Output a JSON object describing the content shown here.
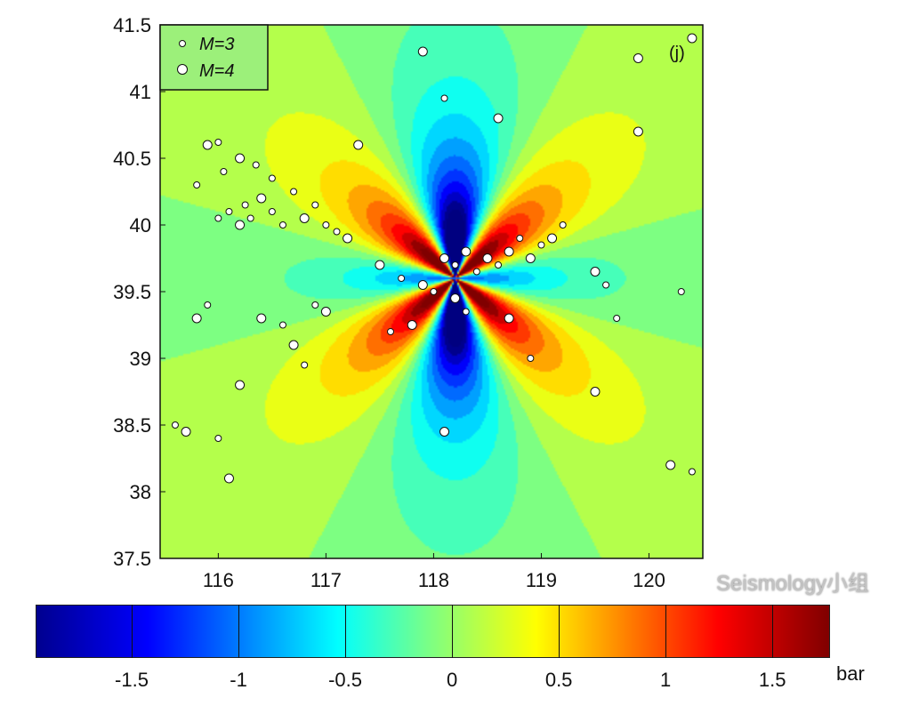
{
  "chart_data": {
    "type": "heatmap",
    "title": "",
    "panel_label": "(j)",
    "xlabel": "",
    "ylabel": "",
    "xlim": [
      115.46,
      120.5
    ],
    "ylim": [
      37.5,
      41.5
    ],
    "xticks": [
      "116",
      "117",
      "118",
      "119",
      "120"
    ],
    "yticks": [
      "41.5",
      "41",
      "40.5",
      "40",
      "39.5",
      "39",
      "38.5",
      "38",
      "37.5"
    ],
    "legend": {
      "placement": "top-left",
      "entries": [
        "M=3",
        "M=4"
      ]
    },
    "colorbar": {
      "range": [
        -1.95,
        1.77
      ],
      "ticks": [
        "-1.5",
        "-1",
        "-0.5",
        "0",
        "0.5",
        "1",
        "1.5"
      ],
      "unit": "bar",
      "colormap": "jet"
    },
    "field_description_values": {
      "source_lon": 118.2,
      "source_lat": 39.6,
      "contour_step": 0.2
    },
    "events": [
      [
        116.0,
        40.05,
        3
      ],
      [
        116.1,
        40.1,
        3
      ],
      [
        116.2,
        40.0,
        4
      ],
      [
        116.25,
        40.15,
        3
      ],
      [
        116.3,
        40.05,
        3
      ],
      [
        116.4,
        40.2,
        4
      ],
      [
        116.5,
        40.1,
        3
      ],
      [
        116.6,
        40.0,
        3
      ],
      [
        116.05,
        40.4,
        3
      ],
      [
        116.2,
        40.5,
        4
      ],
      [
        116.35,
        40.45,
        3
      ],
      [
        116.5,
        40.35,
        3
      ],
      [
        115.9,
        40.6,
        4
      ],
      [
        116.0,
        40.62,
        3
      ],
      [
        115.8,
        40.3,
        3
      ],
      [
        116.7,
        40.25,
        3
      ],
      [
        116.8,
        40.05,
        4
      ],
      [
        116.9,
        40.15,
        3
      ],
      [
        117.0,
        40.0,
        3
      ],
      [
        117.1,
        39.95,
        3
      ],
      [
        117.2,
        39.9,
        4
      ],
      [
        115.8,
        39.3,
        4
      ],
      [
        115.9,
        39.4,
        3
      ],
      [
        116.4,
        39.3,
        4
      ],
      [
        116.6,
        39.25,
        3
      ],
      [
        116.7,
        39.1,
        4
      ],
      [
        116.8,
        38.95,
        3
      ],
      [
        116.9,
        39.4,
        3
      ],
      [
        117.0,
        39.35,
        4
      ],
      [
        117.5,
        39.7,
        4
      ],
      [
        117.7,
        39.6,
        3
      ],
      [
        117.9,
        39.55,
        4
      ],
      [
        118.0,
        39.5,
        3
      ],
      [
        118.1,
        39.75,
        4
      ],
      [
        118.2,
        39.7,
        3
      ],
      [
        118.3,
        39.8,
        4
      ],
      [
        118.4,
        39.65,
        3
      ],
      [
        118.5,
        39.75,
        4
      ],
      [
        118.6,
        39.7,
        3
      ],
      [
        118.7,
        39.8,
        4
      ],
      [
        118.8,
        39.9,
        3
      ],
      [
        118.9,
        39.75,
        4
      ],
      [
        119.0,
        39.85,
        3
      ],
      [
        119.1,
        39.9,
        4
      ],
      [
        119.2,
        40.0,
        3
      ],
      [
        118.2,
        39.45,
        4
      ],
      [
        118.3,
        39.35,
        3
      ],
      [
        117.8,
        39.25,
        4
      ],
      [
        117.6,
        39.2,
        3
      ],
      [
        118.7,
        39.3,
        4
      ],
      [
        118.9,
        39.0,
        3
      ],
      [
        119.5,
        39.65,
        4
      ],
      [
        119.6,
        39.55,
        3
      ],
      [
        119.9,
        40.7,
        4
      ],
      [
        119.7,
        39.3,
        3
      ],
      [
        119.5,
        38.75,
        4
      ],
      [
        120.3,
        39.5,
        3
      ],
      [
        120.2,
        38.2,
        4
      ],
      [
        120.4,
        38.15,
        3
      ],
      [
        116.2,
        38.8,
        4
      ],
      [
        116.0,
        38.4,
        3
      ],
      [
        115.7,
        38.45,
        4
      ],
      [
        115.6,
        38.5,
        3
      ],
      [
        116.1,
        38.1,
        4
      ],
      [
        118.1,
        38.45,
        4
      ],
      [
        119.9,
        41.25,
        4
      ],
      [
        120.4,
        41.4,
        4
      ],
      [
        117.9,
        41.3,
        4
      ],
      [
        118.6,
        40.8,
        4
      ],
      [
        118.1,
        40.95,
        3
      ],
      [
        117.3,
        40.6,
        4
      ]
    ]
  },
  "watermark": "Seismology小组"
}
